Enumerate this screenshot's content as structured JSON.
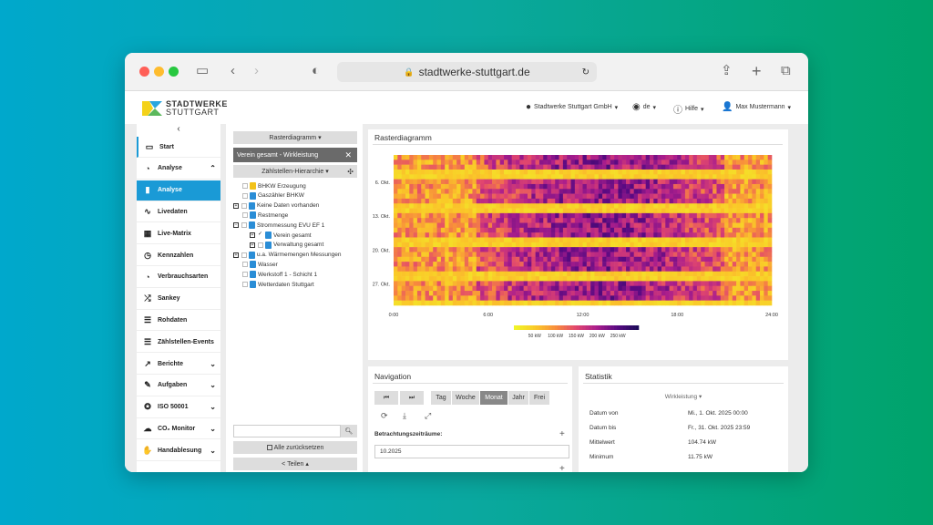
{
  "browser": {
    "url": "stadtwerke-stuttgart.de"
  },
  "header": {
    "logo_line1": "STADTWERKE",
    "logo_line2": "STUTTGART",
    "company": "Stadtwerke Stuttgart GmbH",
    "language": "de",
    "help": "Hilfe",
    "user": "Max Mustermann"
  },
  "sidebar": {
    "items": [
      {
        "label": "Start",
        "icon": "monitor-icon"
      },
      {
        "label": "Analyse",
        "icon": "pie-icon"
      },
      {
        "label": "Analyse",
        "icon": "bar-chart-icon"
      },
      {
        "label": "Livedaten",
        "icon": "pulse-icon"
      },
      {
        "label": "Live-Matrix",
        "icon": "grid-icon"
      },
      {
        "label": "Kennzahlen",
        "icon": "gauge-icon"
      },
      {
        "label": "Verbrauchsarten",
        "icon": "pie-icon"
      },
      {
        "label": "Sankey",
        "icon": "shuffle-icon"
      },
      {
        "label": "Rohdaten",
        "icon": "list-icon"
      },
      {
        "label": "Zählstellen-Events",
        "icon": "list-icon"
      },
      {
        "label": "Berichte",
        "icon": "chart-icon"
      },
      {
        "label": "Aufgaben",
        "icon": "edit-icon"
      },
      {
        "label": "ISO 50001",
        "icon": "award-icon"
      },
      {
        "label": "CO₂ Monitor",
        "icon": "cloud-icon"
      },
      {
        "label": "Handablesung",
        "icon": "hand-icon"
      }
    ]
  },
  "leftpanel": {
    "rasterdiagramm_btn": "Rasterdiagramm",
    "selected": "Verein gesamt - Wirkleistung",
    "hierarchy_btn": "Zählstellen-Hierarchie",
    "reset": "Alle zurücksetzen",
    "share": "Teilen",
    "tree": [
      "BHKW Erzeugung",
      "Gaszähler BHKW",
      "Keine Daten vorhanden",
      "Restmenge",
      "Strommessung EVU EF 1",
      "Verein gesamt",
      "Verwaltung gesamt",
      "u.a. Wärmemengen Messungen",
      "Wasser",
      "Werkstoff 1 - Schicht 1",
      "Wetterdaten Stuttgart"
    ]
  },
  "chart": {
    "title": "Rasterdiagramm"
  },
  "chart_data": {
    "type": "heatmap",
    "y_tick_labels": [
      "6. Okt.",
      "13. Okt.",
      "20. Okt.",
      "27. Okt."
    ],
    "x_tick_labels": [
      "0:00",
      "6:00",
      "12:00",
      "18:00",
      "24:00"
    ],
    "colorbar_labels": [
      "50 kW",
      "100 kW",
      "150 kW",
      "200 kW",
      "250 kW"
    ],
    "range": [
      0,
      300
    ],
    "rows": 31,
    "cols": 96
  },
  "navigation": {
    "title": "Navigation",
    "tabs": [
      "Tag",
      "Woche",
      "Monat",
      "Jahr",
      "Frei"
    ],
    "active_tab": "Monat",
    "periods_label": "Betrachtungszeiträume:",
    "period_value": "10.2025"
  },
  "statistik": {
    "title": "Statistik",
    "dropdown": "Wirkleistung",
    "rows": [
      {
        "k": "Datum von",
        "v": "Mi., 1. Okt. 2025 00:00"
      },
      {
        "k": "Datum bis",
        "v": "Fr., 31. Okt. 2025 23:59"
      },
      {
        "k": "Mittelwert",
        "v": "104.74 kW"
      },
      {
        "k": "Minimum",
        "v": "11.75 kW"
      }
    ]
  }
}
